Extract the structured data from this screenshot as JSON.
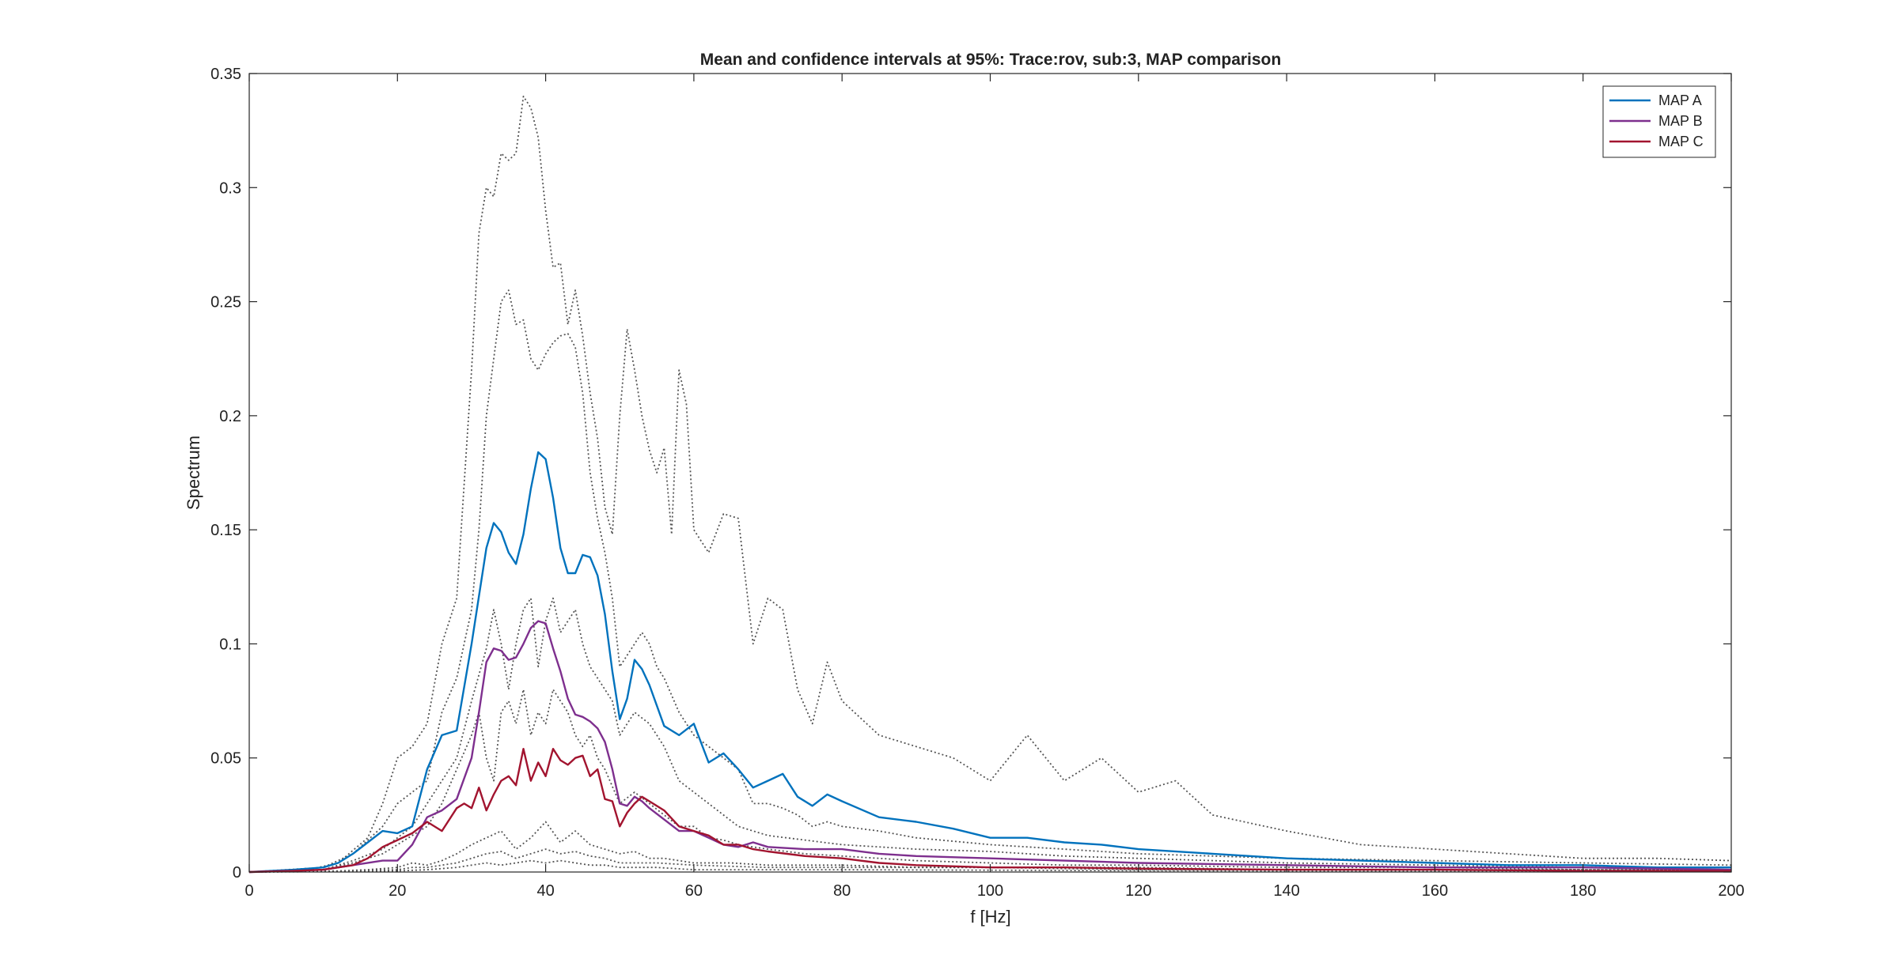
{
  "chart_data": {
    "type": "line",
    "title": "Mean and confidence intervals at 95%: Trace:rov, sub:3, MAP comparison",
    "xlabel": "f [Hz]",
    "ylabel": "Spectrum",
    "xlim": [
      0,
      200
    ],
    "ylim": [
      0,
      0.35
    ],
    "xticks": [
      "0",
      "20",
      "40",
      "60",
      "80",
      "100",
      "120",
      "140",
      "160",
      "180",
      "200"
    ],
    "yticks": [
      "0",
      "0.05",
      "0.1",
      "0.15",
      "0.2",
      "0.25",
      "0.3",
      "0.35"
    ],
    "grid": false,
    "legend_position": "top-right",
    "series": [
      {
        "name": "MAP A",
        "color": "#0072BD",
        "style": "solid",
        "x": [
          0,
          6,
          10,
          12,
          14,
          16,
          18,
          20,
          22,
          24,
          26,
          28,
          30,
          32,
          33,
          34,
          35,
          36,
          37,
          38,
          39,
          40,
          41,
          42,
          43,
          44,
          45,
          46,
          47,
          48,
          49,
          50,
          51,
          52,
          53,
          54,
          56,
          58,
          60,
          62,
          64,
          66,
          68,
          70,
          72,
          74,
          76,
          78,
          80,
          85,
          90,
          95,
          100,
          105,
          110,
          115,
          120,
          130,
          140,
          150,
          160,
          170,
          180,
          190,
          200
        ],
        "y": [
          0,
          0.001,
          0.002,
          0.004,
          0.008,
          0.013,
          0.018,
          0.017,
          0.02,
          0.045,
          0.06,
          0.062,
          0.1,
          0.142,
          0.153,
          0.149,
          0.14,
          0.135,
          0.148,
          0.168,
          0.184,
          0.181,
          0.164,
          0.142,
          0.131,
          0.131,
          0.139,
          0.138,
          0.13,
          0.113,
          0.088,
          0.067,
          0.076,
          0.093,
          0.089,
          0.082,
          0.064,
          0.06,
          0.065,
          0.048,
          0.052,
          0.045,
          0.037,
          0.04,
          0.043,
          0.033,
          0.029,
          0.034,
          0.031,
          0.024,
          0.022,
          0.019,
          0.015,
          0.015,
          0.013,
          0.012,
          0.01,
          0.008,
          0.006,
          0.005,
          0.004,
          0.003,
          0.003,
          0.002,
          0.002
        ]
      },
      {
        "name": "MAP B",
        "color": "#7E2F8E",
        "style": "solid",
        "x": [
          0,
          6,
          10,
          14,
          18,
          20,
          22,
          24,
          26,
          28,
          30,
          31,
          32,
          33,
          34,
          35,
          36,
          37,
          38,
          39,
          40,
          41,
          42,
          43,
          44,
          45,
          46,
          47,
          48,
          49,
          50,
          51,
          52,
          53,
          54,
          56,
          58,
          60,
          62,
          64,
          66,
          68,
          70,
          75,
          80,
          85,
          90,
          100,
          110,
          120,
          140,
          160,
          180,
          200
        ],
        "y": [
          0,
          0.0005,
          0.001,
          0.003,
          0.005,
          0.005,
          0.012,
          0.024,
          0.027,
          0.032,
          0.05,
          0.07,
          0.092,
          0.098,
          0.097,
          0.093,
          0.094,
          0.1,
          0.107,
          0.11,
          0.109,
          0.098,
          0.088,
          0.076,
          0.069,
          0.068,
          0.066,
          0.063,
          0.057,
          0.045,
          0.03,
          0.029,
          0.033,
          0.031,
          0.028,
          0.023,
          0.018,
          0.018,
          0.015,
          0.012,
          0.011,
          0.013,
          0.011,
          0.01,
          0.01,
          0.008,
          0.007,
          0.006,
          0.005,
          0.004,
          0.003,
          0.002,
          0.002,
          0.001
        ]
      },
      {
        "name": "MAP C",
        "color": "#A2142F",
        "style": "solid",
        "x": [
          0,
          6,
          10,
          14,
          16,
          18,
          20,
          22,
          24,
          26,
          28,
          29,
          30,
          31,
          32,
          33,
          34,
          35,
          36,
          37,
          38,
          39,
          40,
          41,
          42,
          43,
          44,
          45,
          46,
          47,
          48,
          49,
          50,
          51,
          52,
          53,
          54,
          56,
          58,
          60,
          62,
          64,
          66,
          68,
          70,
          75,
          80,
          85,
          90,
          100,
          110,
          120,
          140,
          160,
          180,
          200
        ],
        "y": [
          0,
          0.0005,
          0.001,
          0.003,
          0.006,
          0.011,
          0.014,
          0.017,
          0.022,
          0.018,
          0.028,
          0.03,
          0.028,
          0.037,
          0.027,
          0.034,
          0.04,
          0.042,
          0.038,
          0.054,
          0.04,
          0.048,
          0.042,
          0.054,
          0.049,
          0.047,
          0.05,
          0.051,
          0.042,
          0.045,
          0.032,
          0.031,
          0.02,
          0.026,
          0.03,
          0.033,
          0.031,
          0.027,
          0.02,
          0.018,
          0.016,
          0.012,
          0.012,
          0.01,
          0.009,
          0.007,
          0.006,
          0.004,
          0.003,
          0.002,
          0.002,
          0.0015,
          0.001,
          0.001,
          0.0005,
          0.0005
        ]
      },
      {
        "color": "#555555",
        "style": "dotted",
        "x": [
          0,
          8,
          12,
          16,
          18,
          20,
          22,
          24,
          26,
          28,
          30,
          31,
          32,
          33,
          34,
          35,
          36,
          37,
          38,
          39,
          40,
          41,
          42,
          43,
          44,
          45,
          46,
          47,
          48,
          49,
          50,
          51,
          52,
          53,
          54,
          55,
          56,
          57,
          58,
          59,
          60,
          62,
          64,
          66,
          68,
          70,
          72,
          74,
          76,
          78,
          80,
          85,
          90,
          95,
          100,
          105,
          110,
          115,
          120,
          125,
          130,
          140,
          150,
          160,
          170,
          180,
          190,
          200
        ],
        "y": [
          0,
          0.001,
          0.004,
          0.015,
          0.03,
          0.05,
          0.055,
          0.065,
          0.1,
          0.12,
          0.22,
          0.28,
          0.3,
          0.296,
          0.315,
          0.312,
          0.315,
          0.34,
          0.335,
          0.322,
          0.29,
          0.265,
          0.267,
          0.24,
          0.255,
          0.235,
          0.21,
          0.19,
          0.16,
          0.148,
          0.2,
          0.238,
          0.22,
          0.2,
          0.185,
          0.175,
          0.186,
          0.148,
          0.22,
          0.205,
          0.15,
          0.14,
          0.157,
          0.155,
          0.1,
          0.12,
          0.115,
          0.08,
          0.065,
          0.092,
          0.075,
          0.06,
          0.055,
          0.05,
          0.04,
          0.06,
          0.04,
          0.05,
          0.035,
          0.04,
          0.025,
          0.018,
          0.012,
          0.01,
          0.008,
          0.006,
          0.006,
          0.005
        ]
      },
      {
        "color": "#555555",
        "style": "dotted",
        "x": [
          0,
          10,
          14,
          18,
          20,
          22,
          24,
          26,
          28,
          30,
          31,
          32,
          33,
          34,
          35,
          36,
          37,
          38,
          39,
          40,
          41,
          42,
          43,
          44,
          45,
          46,
          47,
          48,
          49,
          50,
          51,
          52,
          53,
          54,
          55,
          56,
          58,
          60,
          62,
          64,
          66,
          68,
          70,
          72,
          74,
          76,
          78,
          80,
          85,
          90,
          100,
          110,
          120,
          140,
          160,
          180,
          200
        ],
        "y": [
          0,
          0.002,
          0.008,
          0.02,
          0.03,
          0.035,
          0.04,
          0.07,
          0.085,
          0.115,
          0.15,
          0.2,
          0.225,
          0.25,
          0.255,
          0.24,
          0.242,
          0.225,
          0.22,
          0.227,
          0.232,
          0.235,
          0.236,
          0.23,
          0.21,
          0.175,
          0.155,
          0.14,
          0.12,
          0.09,
          0.095,
          0.1,
          0.105,
          0.1,
          0.09,
          0.085,
          0.07,
          0.06,
          0.055,
          0.05,
          0.045,
          0.03,
          0.03,
          0.028,
          0.025,
          0.02,
          0.022,
          0.02,
          0.018,
          0.015,
          0.012,
          0.01,
          0.008,
          0.006,
          0.005,
          0.004,
          0.003
        ]
      },
      {
        "color": "#555555",
        "style": "dotted",
        "x": [
          0,
          10,
          14,
          18,
          20,
          22,
          24,
          26,
          28,
          30,
          32,
          33,
          34,
          35,
          36,
          37,
          38,
          39,
          40,
          41,
          42,
          43,
          44,
          45,
          46,
          47,
          48,
          49,
          50,
          52,
          54,
          56,
          58,
          60,
          62,
          64,
          66,
          68,
          70,
          75,
          80,
          90,
          100,
          110,
          120,
          140,
          160,
          180,
          200
        ],
        "y": [
          0,
          0.001,
          0.005,
          0.01,
          0.015,
          0.02,
          0.03,
          0.04,
          0.05,
          0.075,
          0.098,
          0.115,
          0.1,
          0.08,
          0.1,
          0.115,
          0.12,
          0.09,
          0.11,
          0.12,
          0.105,
          0.11,
          0.115,
          0.1,
          0.09,
          0.085,
          0.08,
          0.075,
          0.06,
          0.07,
          0.065,
          0.055,
          0.04,
          0.035,
          0.03,
          0.025,
          0.02,
          0.018,
          0.016,
          0.014,
          0.012,
          0.01,
          0.009,
          0.007,
          0.006,
          0.004,
          0.003,
          0.002,
          0.002
        ]
      },
      {
        "color": "#555555",
        "style": "dotted",
        "x": [
          0,
          10,
          14,
          18,
          20,
          22,
          24,
          26,
          28,
          30,
          31,
          32,
          33,
          34,
          35,
          36,
          37,
          38,
          39,
          40,
          41,
          42,
          43,
          44,
          45,
          46,
          47,
          48,
          50,
          52,
          54,
          56,
          58,
          60,
          62,
          64,
          66,
          68,
          70,
          75,
          80,
          90,
          100,
          110,
          120,
          140,
          160,
          180,
          200
        ],
        "y": [
          0,
          0.001,
          0.004,
          0.008,
          0.012,
          0.016,
          0.02,
          0.03,
          0.045,
          0.06,
          0.07,
          0.05,
          0.04,
          0.07,
          0.075,
          0.065,
          0.08,
          0.06,
          0.07,
          0.065,
          0.08,
          0.075,
          0.07,
          0.06,
          0.055,
          0.06,
          0.05,
          0.045,
          0.03,
          0.035,
          0.03,
          0.025,
          0.02,
          0.02,
          0.015,
          0.014,
          0.012,
          0.011,
          0.01,
          0.008,
          0.007,
          0.005,
          0.004,
          0.003,
          0.003,
          0.002,
          0.002,
          0.001,
          0.001
        ]
      },
      {
        "color": "#555555",
        "style": "dotted",
        "x": [
          0,
          12,
          16,
          20,
          22,
          24,
          26,
          28,
          30,
          32,
          34,
          36,
          38,
          40,
          42,
          44,
          46,
          48,
          50,
          52,
          54,
          56,
          58,
          60,
          65,
          70,
          80,
          90,
          100,
          120,
          140,
          160,
          180,
          200
        ],
        "y": [
          0,
          0.0005,
          0.001,
          0.002,
          0.004,
          0.003,
          0.005,
          0.008,
          0.012,
          0.015,
          0.018,
          0.01,
          0.015,
          0.022,
          0.013,
          0.018,
          0.012,
          0.01,
          0.008,
          0.009,
          0.006,
          0.006,
          0.005,
          0.004,
          0.004,
          0.003,
          0.003,
          0.002,
          0.002,
          0.002,
          0.001,
          0.001,
          0.001,
          0.001
        ]
      },
      {
        "color": "#555555",
        "style": "dotted",
        "x": [
          0,
          12,
          16,
          20,
          22,
          24,
          26,
          28,
          30,
          32,
          34,
          36,
          38,
          40,
          42,
          44,
          46,
          48,
          50,
          55,
          60,
          70,
          80,
          100,
          120,
          140,
          160,
          180,
          200
        ],
        "y": [
          0,
          0.0003,
          0.0008,
          0.001,
          0.002,
          0.002,
          0.003,
          0.004,
          0.006,
          0.008,
          0.009,
          0.006,
          0.008,
          0.01,
          0.008,
          0.009,
          0.007,
          0.006,
          0.004,
          0.004,
          0.003,
          0.002,
          0.002,
          0.002,
          0.001,
          0.001,
          0.001,
          0.0005,
          0.0005
        ]
      },
      {
        "color": "#555555",
        "style": "dotted",
        "x": [
          0,
          12,
          16,
          20,
          24,
          28,
          30,
          32,
          34,
          36,
          38,
          40,
          42,
          44,
          46,
          48,
          50,
          55,
          60,
          70,
          80,
          100,
          120,
          140,
          160,
          180,
          200
        ],
        "y": [
          0,
          0.0002,
          0.0004,
          0.0005,
          0.001,
          0.002,
          0.003,
          0.004,
          0.003,
          0.004,
          0.005,
          0.004,
          0.005,
          0.004,
          0.003,
          0.003,
          0.002,
          0.002,
          0.001,
          0.001,
          0.001,
          0.0008,
          0.0006,
          0.0005,
          0.0004,
          0.0003,
          0.0002
        ]
      }
    ]
  }
}
